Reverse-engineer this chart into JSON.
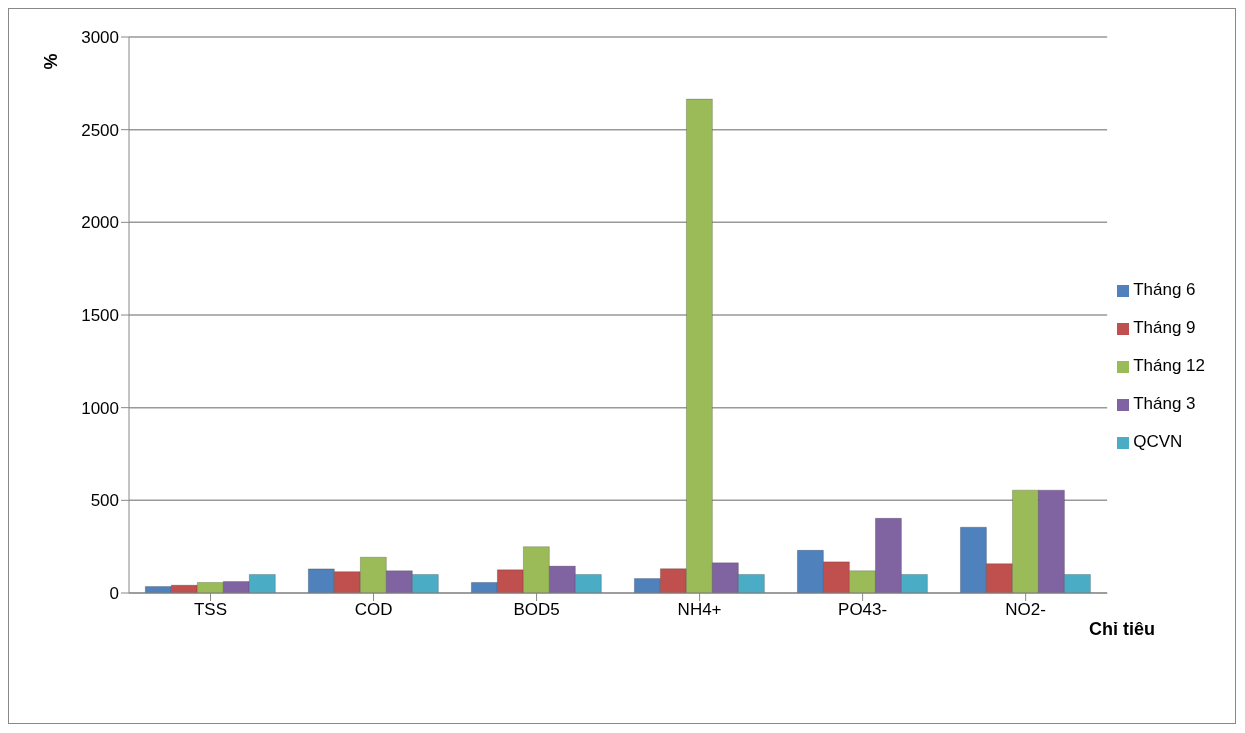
{
  "chart_data": {
    "type": "bar",
    "xlabel": "Chỉ tiêu",
    "ylabel": "%",
    "categories": [
      "TSS",
      "COD",
      "BOD5",
      "NH4+",
      "PO43-",
      "NO2-"
    ],
    "series": [
      {
        "name": "Tháng 6",
        "color": "#4f81bd",
        "values": [
          35,
          130,
          57,
          78,
          230,
          355
        ]
      },
      {
        "name": "Tháng 9",
        "color": "#c0504d",
        "values": [
          42,
          115,
          125,
          131,
          168,
          158
        ]
      },
      {
        "name": "Tháng 12",
        "color": "#9bbb59",
        "values": [
          57,
          193,
          250,
          2665,
          120,
          555
        ]
      },
      {
        "name": "Tháng 3",
        "color": "#8064a2",
        "values": [
          62,
          120,
          145,
          163,
          403,
          555
        ]
      },
      {
        "name": "QCVN",
        "color": "#4bacc6",
        "values": [
          100,
          100,
          100,
          100,
          100,
          100
        ]
      }
    ],
    "ylim": [
      0,
      3000
    ],
    "yticks": [
      0,
      500,
      1000,
      1500,
      2000,
      2500,
      3000
    ],
    "grid": "y",
    "legend": "right"
  }
}
